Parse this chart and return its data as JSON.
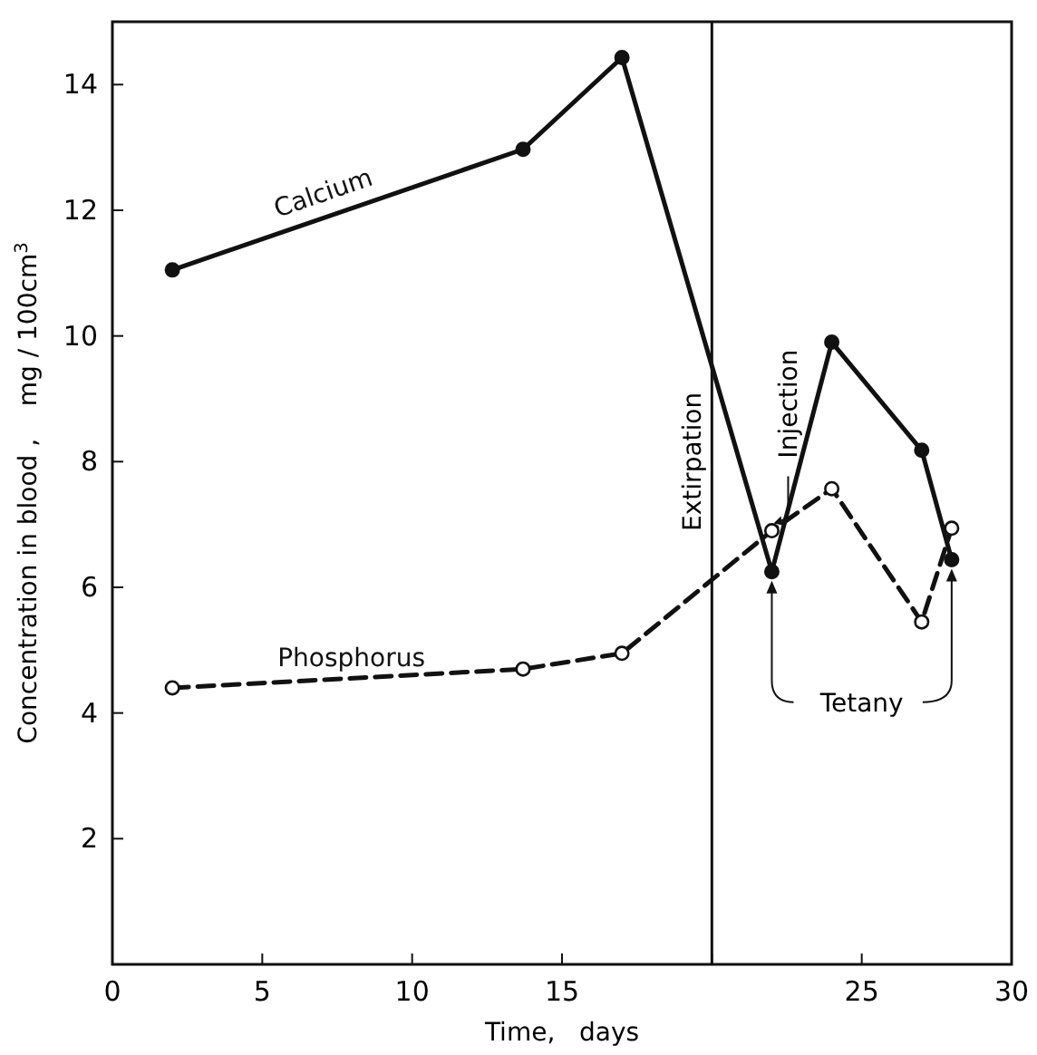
{
  "chart_data": {
    "type": "line",
    "xlabel": "Time,   days",
    "ylabel": "Concentration in blood ,    mg / 100cm$^{3}$",
    "xlim": [
      0,
      30
    ],
    "ylim": [
      0,
      15
    ],
    "xticks": [
      0,
      5,
      10,
      15,
      {
        "value": 20,
        "label": null
      },
      25,
      30
    ],
    "yticks": [
      2,
      4,
      6,
      8,
      10,
      12,
      14
    ],
    "grid": false,
    "series": [
      {
        "name": "Calcium",
        "color": "#111111",
        "marker": "circle",
        "line_style": "solid",
        "x": [
          2,
          13.7,
          17,
          22,
          24,
          27,
          28
        ],
        "values": [
          11.05,
          12.97,
          14.43,
          6.25,
          9.9,
          8.18,
          6.44
        ]
      },
      {
        "name": "Phosphorus",
        "color": "#111111",
        "marker": "circle",
        "line_style": "dashed",
        "x": [
          2,
          13.7,
          17,
          22,
          24,
          27,
          28
        ],
        "values": [
          4.4,
          4.7,
          4.95,
          6.9,
          7.57,
          5.45,
          6.94
        ]
      }
    ],
    "ref_lines": [
      {
        "axis": "x",
        "value": 20,
        "label": "Extirpation",
        "color": "#111111"
      }
    ],
    "annotations": [
      {
        "text": "Injection",
        "x": 22,
        "y": 6.9
      },
      "Tetany"
    ]
  }
}
